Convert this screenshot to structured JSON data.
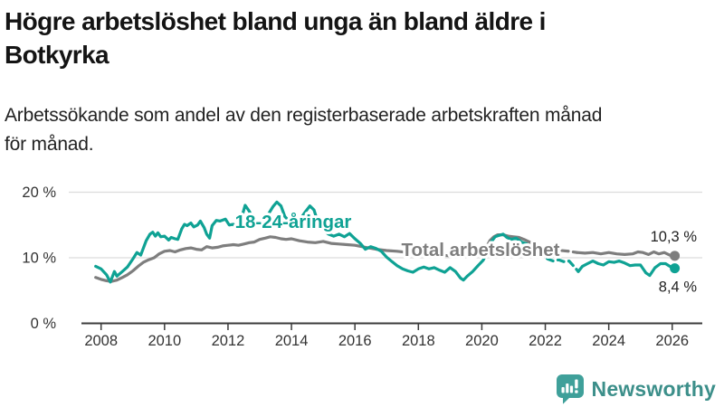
{
  "header": {
    "title_lines": [
      "Högre arbetslöshet bland unga än bland äldre i",
      "Botkyrka"
    ],
    "subtitle_lines": [
      "Arbetssökande som andel av den registerbaserade arbetskraften månad",
      "för månad."
    ]
  },
  "chart_data": {
    "type": "line",
    "title": "Högre arbetslöshet bland unga än bland äldre i Botkyrka",
    "grid": "horizontal",
    "legend_position": "inline-labels",
    "x_axis": {
      "ticks": [
        2008,
        2010,
        2012,
        2014,
        2016,
        2018,
        2020,
        2022,
        2024,
        2026
      ],
      "range": [
        2007.8,
        2026.9
      ]
    },
    "y_axis": {
      "tick_values": [
        0,
        10,
        20
      ],
      "tick_labels": [
        "0 %",
        "10 %",
        "20 %"
      ],
      "range": [
        0,
        22.4
      ]
    },
    "series": [
      {
        "id": "total",
        "name": "Total arbetslöshet",
        "color": "#7e7e7e",
        "end_label": "10,3 %",
        "final_value": 10.3,
        "dash_segment": [
          2021.6,
          2023.0
        ],
        "label_pos": {
          "x": 531,
          "y": 88
        },
        "points": [
          [
            2007.83,
            7.0
          ],
          [
            2008.0,
            6.7
          ],
          [
            2008.17,
            6.5
          ],
          [
            2008.33,
            6.4
          ],
          [
            2008.5,
            6.6
          ],
          [
            2008.67,
            7.0
          ],
          [
            2008.83,
            7.4
          ],
          [
            2009.0,
            8.0
          ],
          [
            2009.17,
            8.7
          ],
          [
            2009.33,
            9.3
          ],
          [
            2009.5,
            9.7
          ],
          [
            2009.67,
            10.0
          ],
          [
            2009.83,
            10.6
          ],
          [
            2010.0,
            11.0
          ],
          [
            2010.17,
            11.1
          ],
          [
            2010.33,
            10.9
          ],
          [
            2010.5,
            11.2
          ],
          [
            2010.67,
            11.4
          ],
          [
            2010.83,
            11.5
          ],
          [
            2011.0,
            11.3
          ],
          [
            2011.17,
            11.2
          ],
          [
            2011.33,
            11.7
          ],
          [
            2011.5,
            11.5
          ],
          [
            2011.67,
            11.6
          ],
          [
            2011.83,
            11.8
          ],
          [
            2012.0,
            11.9
          ],
          [
            2012.17,
            12.0
          ],
          [
            2012.33,
            11.9
          ],
          [
            2012.5,
            12.1
          ],
          [
            2012.67,
            12.3
          ],
          [
            2012.83,
            12.4
          ],
          [
            2013.0,
            12.8
          ],
          [
            2013.17,
            13.0
          ],
          [
            2013.33,
            13.2
          ],
          [
            2013.5,
            13.1
          ],
          [
            2013.67,
            12.9
          ],
          [
            2013.83,
            12.8
          ],
          [
            2014.0,
            12.9
          ],
          [
            2014.25,
            12.6
          ],
          [
            2014.5,
            12.4
          ],
          [
            2014.75,
            12.3
          ],
          [
            2015.0,
            12.5
          ],
          [
            2015.25,
            12.2
          ],
          [
            2015.5,
            12.1
          ],
          [
            2015.75,
            12.0
          ],
          [
            2016.0,
            11.9
          ],
          [
            2016.33,
            11.6
          ],
          [
            2016.67,
            11.3
          ],
          [
            2017.0,
            11.1
          ],
          [
            2017.33,
            11.0
          ],
          [
            2017.67,
            10.8
          ],
          [
            2018.0,
            10.8
          ],
          [
            2018.33,
            10.6
          ],
          [
            2018.67,
            10.4
          ],
          [
            2019.0,
            10.3
          ],
          [
            2019.33,
            10.2
          ],
          [
            2019.67,
            10.4
          ],
          [
            2019.83,
            10.6
          ],
          [
            2020.0,
            10.9
          ],
          [
            2020.13,
            11.5
          ],
          [
            2020.25,
            12.6
          ],
          [
            2020.38,
            13.2
          ],
          [
            2020.5,
            13.5
          ],
          [
            2020.67,
            13.5
          ],
          [
            2020.83,
            13.3
          ],
          [
            2021.0,
            13.2
          ],
          [
            2021.17,
            13.1
          ],
          [
            2021.33,
            12.8
          ],
          [
            2021.5,
            12.4
          ],
          [
            2021.67,
            12.0
          ],
          [
            2021.83,
            11.7
          ],
          [
            2022.0,
            11.5
          ],
          [
            2022.25,
            11.3
          ],
          [
            2022.5,
            11.1
          ],
          [
            2022.75,
            11.0
          ],
          [
            2023.0,
            10.8
          ],
          [
            2023.25,
            10.7
          ],
          [
            2023.5,
            10.8
          ],
          [
            2023.75,
            10.6
          ],
          [
            2024.0,
            10.8
          ],
          [
            2024.25,
            10.6
          ],
          [
            2024.5,
            10.5
          ],
          [
            2024.75,
            10.6
          ],
          [
            2024.92,
            10.9
          ],
          [
            2025.08,
            10.8
          ],
          [
            2025.25,
            10.5
          ],
          [
            2025.42,
            10.9
          ],
          [
            2025.58,
            10.6
          ],
          [
            2025.75,
            10.8
          ],
          [
            2025.92,
            10.4
          ],
          [
            2026.08,
            10.3
          ]
        ]
      },
      {
        "id": "youth",
        "name": "18-24-åringar",
        "color": "#0fa294",
        "end_label": "8,4 %",
        "final_value": 8.4,
        "dash_segment": [
          2021.9,
          2022.95
        ],
        "label_pos": {
          "x": 324,
          "y": 57
        },
        "points": [
          [
            2007.83,
            8.7
          ],
          [
            2008.0,
            8.3
          ],
          [
            2008.17,
            7.4
          ],
          [
            2008.29,
            6.3
          ],
          [
            2008.42,
            7.9
          ],
          [
            2008.5,
            7.2
          ],
          [
            2008.67,
            7.9
          ],
          [
            2008.83,
            8.6
          ],
          [
            2009.0,
            9.8
          ],
          [
            2009.13,
            10.8
          ],
          [
            2009.25,
            10.4
          ],
          [
            2009.42,
            12.6
          ],
          [
            2009.54,
            13.6
          ],
          [
            2009.63,
            13.9
          ],
          [
            2009.71,
            13.3
          ],
          [
            2009.79,
            13.8
          ],
          [
            2009.88,
            13.2
          ],
          [
            2010.0,
            13.3
          ],
          [
            2010.13,
            12.7
          ],
          [
            2010.21,
            13.1
          ],
          [
            2010.33,
            12.9
          ],
          [
            2010.42,
            12.8
          ],
          [
            2010.54,
            14.4
          ],
          [
            2010.63,
            15.1
          ],
          [
            2010.71,
            14.9
          ],
          [
            2010.83,
            15.3
          ],
          [
            2010.92,
            14.7
          ],
          [
            2011.04,
            15.0
          ],
          [
            2011.13,
            15.6
          ],
          [
            2011.25,
            14.6
          ],
          [
            2011.33,
            13.6
          ],
          [
            2011.42,
            13.0
          ],
          [
            2011.5,
            14.9
          ],
          [
            2011.63,
            15.7
          ],
          [
            2011.75,
            15.6
          ],
          [
            2011.92,
            15.9
          ],
          [
            2012.04,
            15.0
          ],
          [
            2012.17,
            15.1
          ],
          [
            2012.29,
            14.5
          ],
          [
            2012.42,
            16.0
          ],
          [
            2012.54,
            18.0
          ],
          [
            2012.67,
            17.1
          ],
          [
            2012.83,
            15.6
          ],
          [
            2012.96,
            15.2
          ],
          [
            2013.13,
            15.7
          ],
          [
            2013.29,
            16.8
          ],
          [
            2013.42,
            17.8
          ],
          [
            2013.54,
            18.5
          ],
          [
            2013.67,
            17.9
          ],
          [
            2013.79,
            16.3
          ],
          [
            2013.92,
            15.6
          ],
          [
            2014.08,
            15.2
          ],
          [
            2014.25,
            15.7
          ],
          [
            2014.42,
            16.9
          ],
          [
            2014.58,
            17.9
          ],
          [
            2014.71,
            17.3
          ],
          [
            2014.83,
            15.4
          ],
          [
            2015.0,
            14.2
          ],
          [
            2015.17,
            13.6
          ],
          [
            2015.33,
            13.3
          ],
          [
            2015.5,
            13.6
          ],
          [
            2015.67,
            13.2
          ],
          [
            2015.83,
            13.7
          ],
          [
            2016.0,
            12.9
          ],
          [
            2016.17,
            12.2
          ],
          [
            2016.33,
            11.3
          ],
          [
            2016.5,
            11.7
          ],
          [
            2016.67,
            11.4
          ],
          [
            2016.83,
            11.0
          ],
          [
            2017.0,
            10.1
          ],
          [
            2017.17,
            9.4
          ],
          [
            2017.33,
            8.8
          ],
          [
            2017.5,
            8.3
          ],
          [
            2017.67,
            8.0
          ],
          [
            2017.83,
            7.8
          ],
          [
            2018.0,
            8.3
          ],
          [
            2018.17,
            8.6
          ],
          [
            2018.33,
            8.3
          ],
          [
            2018.5,
            8.5
          ],
          [
            2018.67,
            8.1
          ],
          [
            2018.83,
            7.8
          ],
          [
            2019.0,
            8.5
          ],
          [
            2019.17,
            7.9
          ],
          [
            2019.33,
            6.9
          ],
          [
            2019.42,
            6.6
          ],
          [
            2019.54,
            7.2
          ],
          [
            2019.71,
            7.9
          ],
          [
            2019.88,
            8.8
          ],
          [
            2020.04,
            9.6
          ],
          [
            2020.17,
            10.9
          ],
          [
            2020.29,
            12.4
          ],
          [
            2020.42,
            13.2
          ],
          [
            2020.54,
            13.4
          ],
          [
            2020.67,
            13.6
          ],
          [
            2020.79,
            13.1
          ],
          [
            2020.92,
            12.8
          ],
          [
            2021.08,
            13.0
          ],
          [
            2021.25,
            12.4
          ],
          [
            2021.42,
            12.1
          ],
          [
            2021.58,
            11.4
          ],
          [
            2021.75,
            10.7
          ],
          [
            2021.92,
            10.4
          ],
          [
            2022.08,
            9.8
          ],
          [
            2022.25,
            9.5
          ],
          [
            2022.42,
            9.7
          ],
          [
            2022.58,
            9.4
          ],
          [
            2022.75,
            9.5
          ],
          [
            2022.92,
            8.6
          ],
          [
            2023.04,
            7.9
          ],
          [
            2023.17,
            8.7
          ],
          [
            2023.33,
            9.1
          ],
          [
            2023.5,
            9.5
          ],
          [
            2023.67,
            9.1
          ],
          [
            2023.83,
            8.9
          ],
          [
            2024.0,
            9.4
          ],
          [
            2024.17,
            9.3
          ],
          [
            2024.33,
            9.5
          ],
          [
            2024.5,
            9.2
          ],
          [
            2024.67,
            8.8
          ],
          [
            2024.83,
            8.9
          ],
          [
            2025.0,
            8.9
          ],
          [
            2025.17,
            7.7
          ],
          [
            2025.29,
            7.3
          ],
          [
            2025.46,
            8.5
          ],
          [
            2025.63,
            9.1
          ],
          [
            2025.79,
            9.1
          ],
          [
            2025.92,
            8.7
          ],
          [
            2026.08,
            8.4
          ]
        ]
      }
    ]
  },
  "branding": {
    "logo_text": "Newsworthy",
    "icon_color": "#3fa09a",
    "text_color": "#3c8f8a"
  },
  "colors": {
    "axis": "#3b3b3b",
    "tick_label": "#333333",
    "grid": "#dcdcdc",
    "annotation": "#222222"
  }
}
